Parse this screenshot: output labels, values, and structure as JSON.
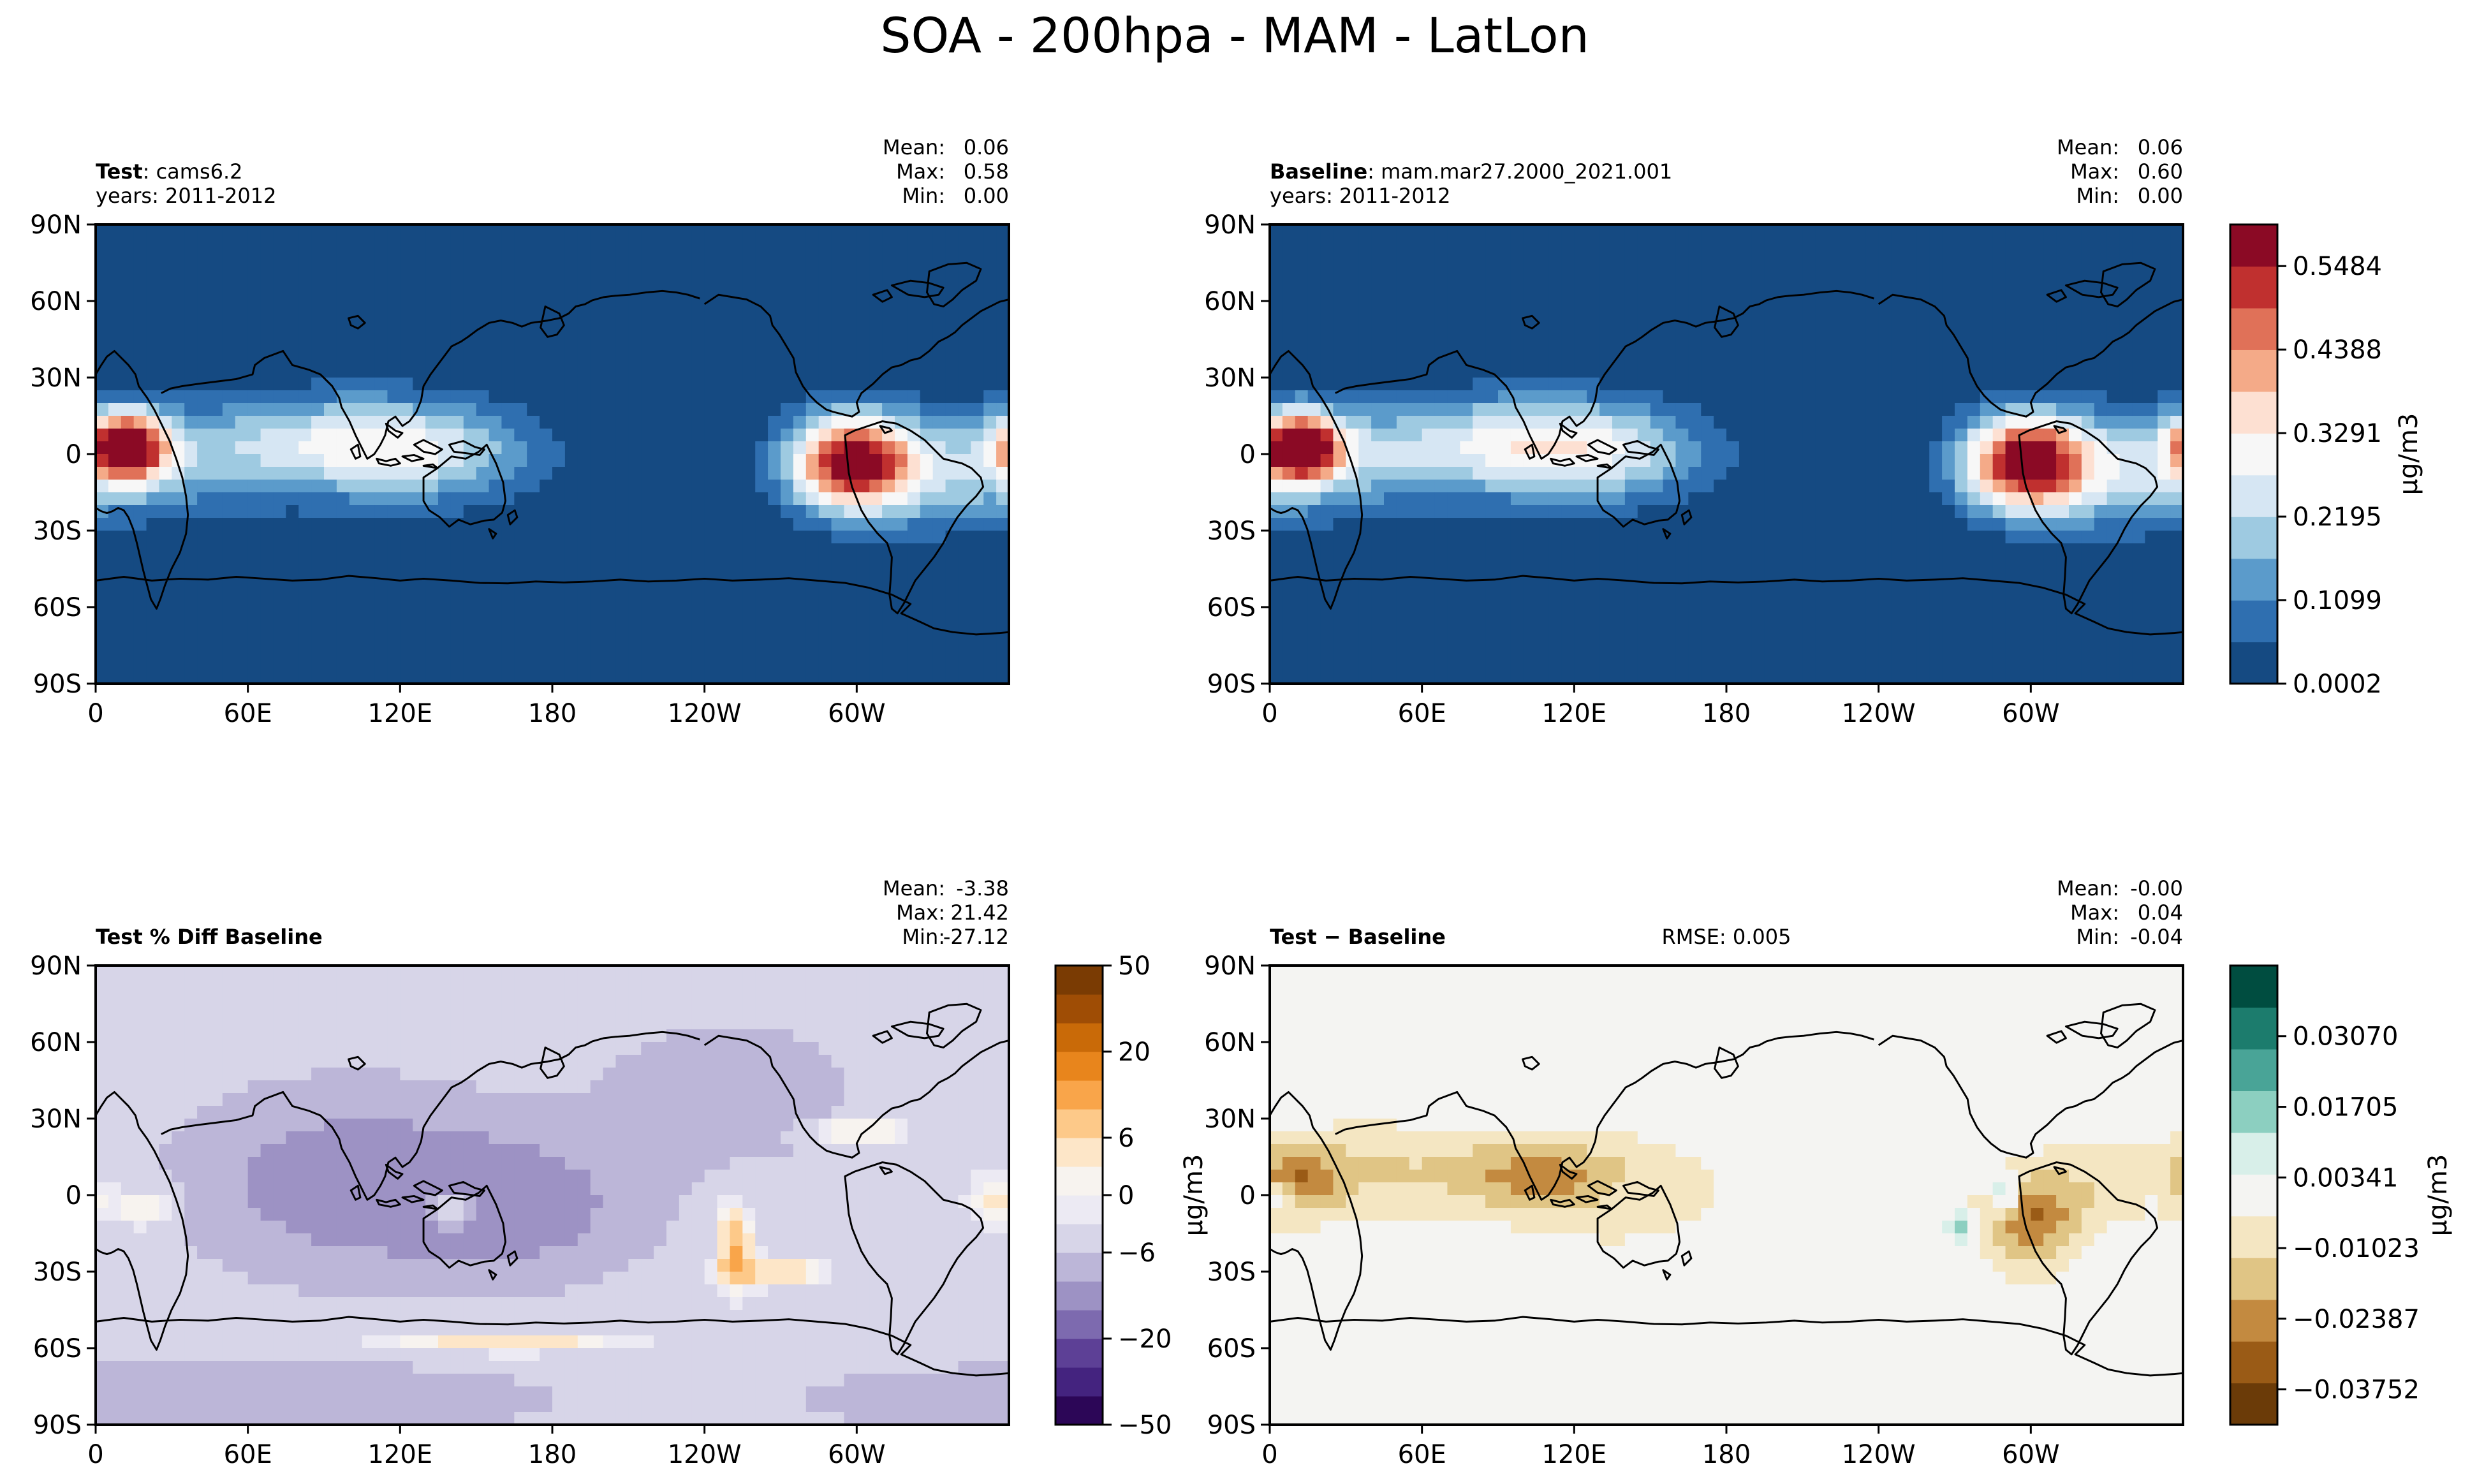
{
  "figure": {
    "title": "SOA - 200hpa - MAM - LatLon"
  },
  "lat_ticks": [
    "90N",
    "60N",
    "30N",
    "0",
    "30S",
    "60S",
    "90S"
  ],
  "lon_ticks": [
    "0",
    "60E",
    "120E",
    "180",
    "120W",
    "60W"
  ],
  "colors": {
    "ocean_low": "#154a82",
    "coast": "#000000",
    "seq_ramp": [
      "#154a82",
      "#2f6fb0",
      "#5b9bcb",
      "#9ecae1",
      "#d6e6f3",
      "#f7f7f7",
      "#fde0d2",
      "#f4aa88",
      "#e07158",
      "#c0302f",
      "#8b0a25"
    ],
    "pct_ramp": [
      "#2c0657",
      "#44237f",
      "#5d4096",
      "#7d6aaf",
      "#9d92c4",
      "#bcb6d8",
      "#d7d5e8",
      "#eceaf3",
      "#f7f3ef",
      "#fde6c8",
      "#fdc989",
      "#f9a54a",
      "#e8851c",
      "#c96a08",
      "#9f4d05",
      "#7a3b03"
    ],
    "diff_ramp": [
      "#6b3b08",
      "#9a5b16",
      "#c38a40",
      "#e0c585",
      "#f4e6c2",
      "#f4f4f2",
      "#d8efe9",
      "#8ccfc0",
      "#49a497",
      "#1c7c6d",
      "#004d40"
    ]
  },
  "chart_data": [
    {
      "type": "heatmap",
      "panel": "test",
      "title_bold": "Test",
      "title_sep": ":",
      "title_text": "cams6.2",
      "years": "years: 2011-2012",
      "stats": {
        "mean_label": "Mean:",
        "mean": "0.06",
        "max_label": "Max:",
        "max": "0.58",
        "min_label": "Min:",
        "min": "0.00"
      },
      "xlim": [
        0,
        360
      ],
      "ylim": [
        -90,
        90
      ],
      "features": [
        {
          "lon": 12,
          "lat": 3,
          "amp": 0.55,
          "slon": 11,
          "slat": 9
        },
        {
          "lon": 25,
          "lat": -2,
          "amp": 0.16,
          "slon": 38,
          "slat": 15
        },
        {
          "lon": 95,
          "lat": 5,
          "amp": 0.18,
          "slon": 35,
          "slat": 13
        },
        {
          "lon": 130,
          "lat": 0,
          "amp": 0.19,
          "slon": 32,
          "slat": 14
        },
        {
          "lon": 298,
          "lat": -3,
          "amp": 0.55,
          "slon": 17,
          "slat": 13
        },
        {
          "lon": 330,
          "lat": -8,
          "amp": 0.14,
          "slon": 30,
          "slat": 16
        }
      ]
    },
    {
      "type": "heatmap",
      "panel": "baseline",
      "title_bold": "Baseline",
      "title_sep": ":",
      "title_text": "mam.mar27.2000_2021.001",
      "years": "years: 2011-2012",
      "stats": {
        "mean_label": "Mean:",
        "mean": "0.06",
        "max_label": "Max:",
        "max": "0.60",
        "min_label": "Min:",
        "min": "0.00"
      },
      "xlim": [
        0,
        360
      ],
      "ylim": [
        -90,
        90
      ],
      "features": [
        {
          "lon": 12,
          "lat": 3,
          "amp": 0.57,
          "slon": 11,
          "slat": 9
        },
        {
          "lon": 25,
          "lat": -2,
          "amp": 0.17,
          "slon": 38,
          "slat": 15
        },
        {
          "lon": 95,
          "lat": 5,
          "amp": 0.19,
          "slon": 35,
          "slat": 13
        },
        {
          "lon": 130,
          "lat": 0,
          "amp": 0.2,
          "slon": 32,
          "slat": 14
        },
        {
          "lon": 298,
          "lat": -3,
          "amp": 0.57,
          "slon": 17,
          "slat": 13
        },
        {
          "lon": 330,
          "lat": -8,
          "amp": 0.15,
          "slon": 30,
          "slat": 16
        }
      ],
      "colorbar": {
        "label": "μg/m3",
        "tick_labels": [
          "0.0002",
          "0.1099",
          "0.2195",
          "0.3291",
          "0.4388",
          "0.5484"
        ],
        "tick_values": [
          0.0002,
          0.1099,
          0.2195,
          0.3291,
          0.4388,
          0.5484
        ],
        "range": [
          0.0002,
          0.603
        ]
      }
    },
    {
      "type": "heatmap",
      "panel": "pct_diff",
      "title_bold": "Test % Diff Baseline",
      "stats": {
        "mean_label": "Mean:",
        "mean": "-3.38",
        "max_label": "Max:",
        "max": "21.42",
        "min_label": "Min:",
        "min": "-27.12"
      },
      "xlim": [
        0,
        360
      ],
      "ylim": [
        -90,
        90
      ],
      "base_value": -4,
      "features": [
        {
          "lon": 100,
          "lat": 5,
          "amp": -9,
          "slon": 45,
          "slat": 25
        },
        {
          "lon": 170,
          "lat": -5,
          "amp": -7,
          "slon": 35,
          "slat": 20
        },
        {
          "lon": 250,
          "lat": 40,
          "amp": -5,
          "slon": 35,
          "slat": 20
        },
        {
          "lon": 252,
          "lat": -20,
          "amp": 14,
          "slon": 5,
          "slat": 12
        },
        {
          "lon": 268,
          "lat": -30,
          "amp": 10,
          "slon": 14,
          "slat": 4
        },
        {
          "lon": 300,
          "lat": 25,
          "amp": 10,
          "slon": 15,
          "slat": 3
        },
        {
          "lon": 160,
          "lat": -58,
          "amp": 9,
          "slon": 35,
          "slat": 3
        },
        {
          "lon": 20,
          "lat": -5,
          "amp": 8,
          "slon": 8,
          "slat": 6
        },
        {
          "lon": 140,
          "lat": -5,
          "amp": 12,
          "slon": 6,
          "slat": 5
        },
        {
          "lon": 355,
          "lat": -2,
          "amp": 8,
          "slon": 8,
          "slat": 8
        },
        {
          "lon": 50,
          "lat": -80,
          "amp": -6,
          "slon": 90,
          "slat": 10
        }
      ],
      "colorbar": {
        "label": "μg/m3",
        "tick_labels": [
          "−50",
          "−20",
          "−6",
          "0",
          "6",
          "20",
          "50"
        ],
        "tick_values": [
          -50,
          -20,
          -6,
          0,
          6,
          20,
          50
        ],
        "levels": [
          -70,
          -60,
          -50,
          -40,
          -30,
          -20,
          -15,
          -10,
          -6,
          -2,
          0,
          2,
          6,
          10,
          15,
          20,
          30,
          40,
          50,
          60,
          70
        ]
      }
    },
    {
      "type": "heatmap",
      "panel": "diff",
      "title_bold": "Test − Baseline",
      "rmse": "RMSE: 0.005",
      "stats": {
        "mean_label": "Mean:",
        "mean": "-0.00",
        "max_label": "Max:",
        "max": "0.04",
        "min_label": "Min:",
        "min": "-0.04"
      },
      "xlim": [
        0,
        360
      ],
      "ylim": [
        -90,
        90
      ],
      "features": [
        {
          "lon": 10,
          "lat": 5,
          "amp": -0.025,
          "slon": 12,
          "slat": 9
        },
        {
          "lon": 5,
          "lat": 0,
          "amp": 0.022,
          "slon": 4,
          "slat": 4
        },
        {
          "lon": 40,
          "lat": 10,
          "amp": -0.012,
          "slon": 25,
          "slat": 12
        },
        {
          "lon": 100,
          "lat": 8,
          "amp": -0.02,
          "slon": 22,
          "slat": 10
        },
        {
          "lon": 138,
          "lat": 2,
          "amp": -0.012,
          "slon": 25,
          "slat": 13
        },
        {
          "lon": 140,
          "lat": 0,
          "amp": 0.012,
          "slon": 5,
          "slat": 4
        },
        {
          "lon": 300,
          "lat": -10,
          "amp": -0.028,
          "slon": 13,
          "slat": 12
        },
        {
          "lon": 290,
          "lat": 0,
          "amp": 0.025,
          "slon": 4,
          "slat": 5
        },
        {
          "lon": 273,
          "lat": -12,
          "amp": 0.018,
          "slon": 4,
          "slat": 4
        },
        {
          "lon": 330,
          "lat": 5,
          "amp": -0.01,
          "slon": 20,
          "slat": 10
        },
        {
          "lon": 350,
          "lat": 2,
          "amp": 0.008,
          "slon": 5,
          "slat": 6
        }
      ],
      "colorbar": {
        "label": "μg/m3",
        "tick_labels": [
          "−0.03752",
          "−0.02387",
          "−0.01023",
          "0.00341",
          "0.01705",
          "0.03070"
        ],
        "tick_values": [
          -0.03752,
          -0.02387,
          -0.01023,
          0.00341,
          0.01705,
          0.0307
        ],
        "range": [
          -0.04434,
          0.04434
        ]
      }
    }
  ]
}
